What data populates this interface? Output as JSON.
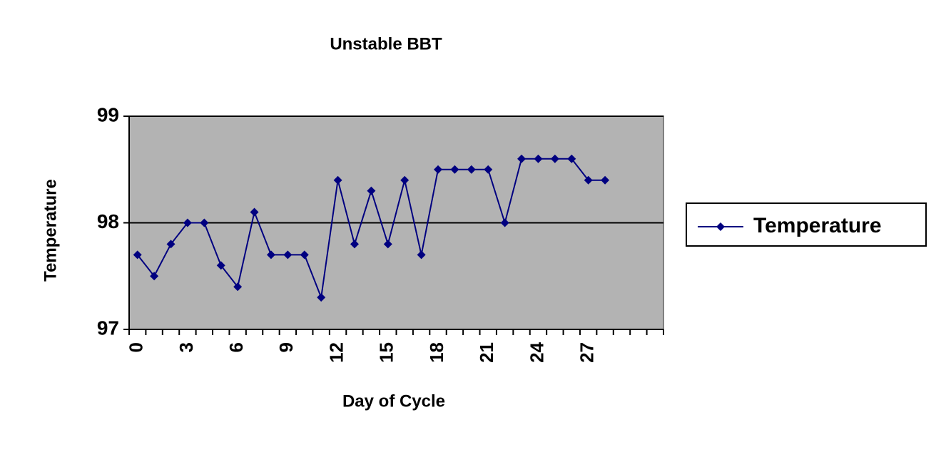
{
  "chart_data": {
    "type": "line",
    "title": "Unstable BBT",
    "x_label": "Day of Cycle",
    "y_label": "Temperature",
    "categories": [
      "0",
      null,
      null,
      "3",
      null,
      null,
      "6",
      null,
      null,
      "9",
      null,
      null,
      "12",
      null,
      null,
      "15",
      null,
      null,
      "18",
      null,
      null,
      "21",
      null,
      null,
      "24",
      null,
      null,
      "27",
      null,
      null,
      null,
      null
    ],
    "series": [
      {
        "name": "Temperature",
        "color": "#000080",
        "values": [
          97.7,
          97.5,
          97.8,
          98,
          98,
          97.6,
          97.4,
          98.1,
          97.7,
          97.7,
          97.7,
          97.3,
          98.4,
          97.8,
          98.3,
          97.8,
          98.4,
          97.7,
          98.5,
          98.5,
          98.5,
          98.5,
          98,
          98.6,
          98.6,
          98.6,
          98.6,
          98.4,
          98.4,
          null,
          null,
          null
        ]
      }
    ],
    "ylim": [
      97,
      99
    ],
    "yticks": [
      97,
      98,
      99
    ],
    "grid": true,
    "legend": "right",
    "plot_background": "#b3b3b3"
  }
}
